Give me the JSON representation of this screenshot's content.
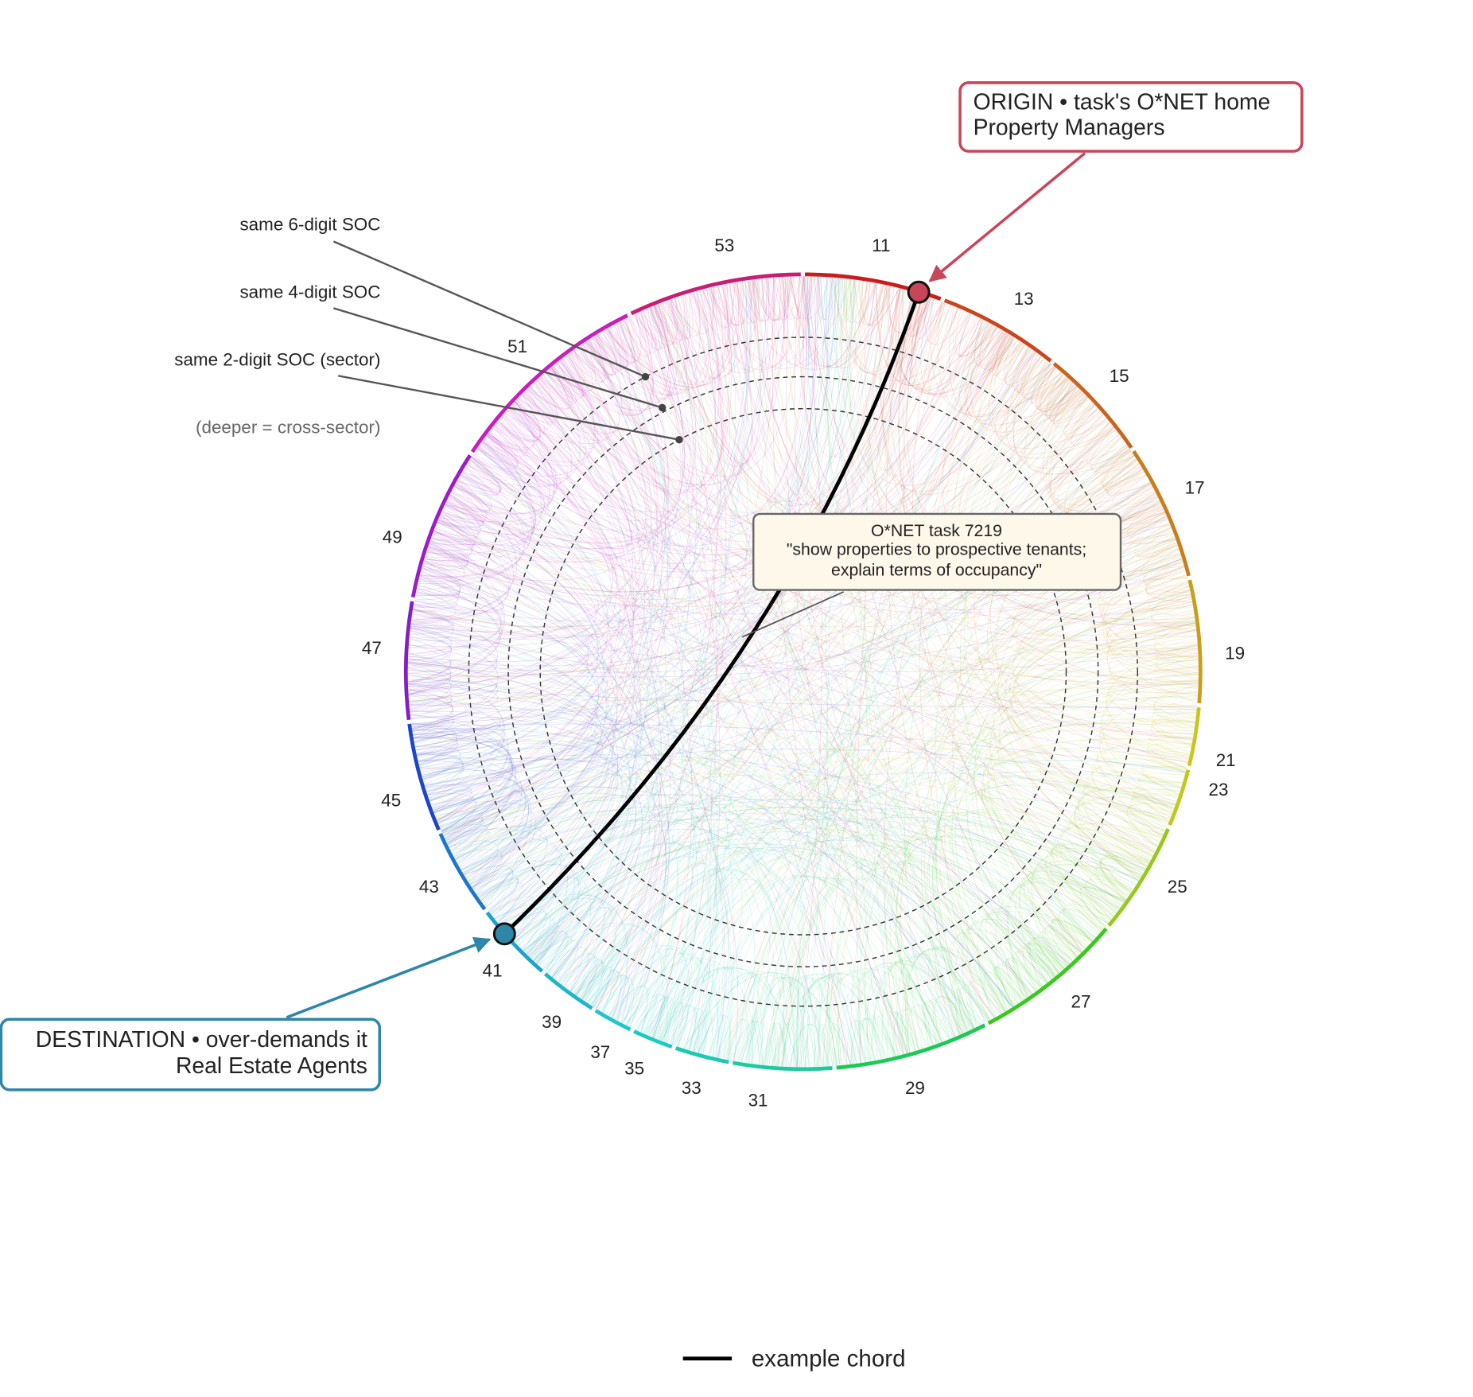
{
  "sectors": [
    "11",
    "13",
    "15",
    "17",
    "19",
    "21",
    "23",
    "25",
    "27",
    "29",
    "31",
    "33",
    "35",
    "37",
    "39",
    "41",
    "43",
    "45",
    "47",
    "49",
    "51",
    "53"
  ],
  "origin": {
    "title": "ORIGIN • task's O*NET home",
    "occupation": "Property Managers"
  },
  "destination": {
    "title": "DESTINATION • over-demands it",
    "occupation": "Real Estate Agents"
  },
  "task": {
    "id": "O*NET task 7219",
    "line1": "\"show properties to prospective tenants;",
    "line2": "explain terms of occupancy\""
  },
  "rings": [
    "same 6-digit SOC",
    "same 4-digit SOC",
    "same 2-digit SOC (sector)",
    "(deeper = cross-sector)"
  ],
  "legend": "example chord"
}
